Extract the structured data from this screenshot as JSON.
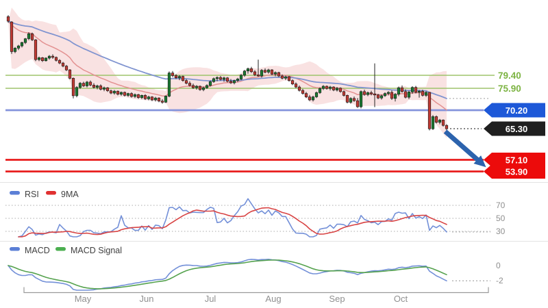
{
  "page": {
    "background": "#ffffff"
  },
  "price_chart": {
    "levels": [
      {
        "label": "79.40",
        "value": 79.4,
        "style": "green-line",
        "color": "#9dc36b",
        "label_color": "#7cb342"
      },
      {
        "label": "75.90",
        "value": 75.9,
        "style": "green-line",
        "color": "#9dc36b",
        "label_color": "#7cb342"
      },
      {
        "label": "70.20",
        "value": 70.2,
        "style": "blue-tag",
        "color": "#8494dc",
        "tag_color": "#1d58d8"
      },
      {
        "label": "65.30",
        "value": 65.3,
        "style": "black-tag",
        "color": "#333333",
        "tag_color": "#1f1f1f"
      },
      {
        "label": "57.10",
        "value": 57.1,
        "style": "red-tag",
        "color": "#e81c1c",
        "tag_color": "#ec0b0b"
      },
      {
        "label": "53.90",
        "value": 53.9,
        "style": "red-tag",
        "color": "#e81c1c",
        "tag_color": "#ec0b0b"
      }
    ],
    "annotation_arrow": {
      "from_price": 65.0,
      "to_price": 54.0,
      "direction": "down-right",
      "color": "#2c63ad"
    }
  },
  "rsi_panel": {
    "legend": [
      {
        "label": "RSI",
        "color": "#5b7fd6"
      },
      {
        "label": "9MA",
        "color": "#e03030"
      }
    ],
    "ticks": [
      "70",
      "50",
      "30"
    ]
  },
  "macd_panel": {
    "legend": [
      {
        "label": "MACD",
        "color": "#5b7fd6"
      },
      {
        "label": "MACD Signal",
        "color": "#4caf50"
      }
    ],
    "ticks": [
      "0",
      "-2"
    ]
  },
  "x_axis": {
    "months": [
      "May",
      "Jun",
      "Jul",
      "Aug",
      "Sep",
      "Oct"
    ]
  },
  "chart_data": {
    "type": "candlestick",
    "description": "Daily price candles mid-April through late-October with Bollinger-style band, fast/slow moving averages, horizontal support/resistance levels, RSI sub-panel and MACD sub-panel",
    "price_levels": [
      79.4,
      75.9,
      70.2,
      65.3,
      57.1,
      53.9
    ],
    "ylim_price": [
      52,
      97
    ],
    "rsi_ticks": [
      70,
      50,
      30
    ],
    "macd_ticks": [
      0,
      -2
    ],
    "indicators": {
      "band_window": 15,
      "band_mult": 2.1,
      "fast_ma_window": 15,
      "slow_ma_window": 45,
      "rsi_window": 14,
      "rsi_ma_window": 9,
      "macd_params": [
        12,
        26,
        9
      ]
    },
    "colors": {
      "up": "#1b7a32",
      "down": "#c13a34",
      "wick": "#222222",
      "band_fill": "rgba(236,164,164,0.32)",
      "fast_ma": "#e39191",
      "slow_ma": "#8094d0",
      "rsi": "#7390d8",
      "rsi_ma": "#d84343",
      "macd": "#7390d8",
      "macd_signal": "#55a24e",
      "leader_gray": "#b0b0b0",
      "leader_black": "#3a3a3a"
    },
    "ohlc": [
      [
        94.8,
        95.2,
        93.2,
        93.6
      ],
      [
        93.4,
        93.6,
        85.0,
        85.6
      ],
      [
        85.6,
        86.8,
        85.2,
        86.5
      ],
      [
        86.5,
        87.4,
        86.0,
        87.1
      ],
      [
        87.1,
        88.2,
        86.7,
        88.0
      ],
      [
        88.0,
        89.2,
        87.6,
        89.0
      ],
      [
        89.0,
        90.7,
        88.6,
        90.3
      ],
      [
        90.3,
        90.6,
        88.4,
        88.7
      ],
      [
        88.7,
        88.9,
        83.1,
        83.5
      ],
      [
        83.5,
        84.3,
        83.1,
        84.0
      ],
      [
        84.0,
        84.2,
        82.9,
        83.2
      ],
      [
        83.2,
        84.1,
        83.0,
        83.9
      ],
      [
        83.9,
        84.7,
        83.5,
        84.4
      ],
      [
        84.4,
        84.9,
        83.7,
        84.1
      ],
      [
        84.1,
        84.3,
        83.0,
        83.3
      ],
      [
        83.3,
        83.6,
        82.3,
        82.6
      ],
      [
        82.6,
        82.9,
        81.5,
        81.8
      ],
      [
        81.8,
        82.1,
        80.5,
        80.8
      ],
      [
        80.8,
        81.0,
        78.3,
        78.6
      ],
      [
        78.6,
        78.8,
        73.3,
        74.0
      ],
      [
        74.0,
        76.5,
        73.6,
        76.2
      ],
      [
        76.2,
        77.6,
        75.8,
        77.3
      ],
      [
        77.3,
        77.7,
        76.3,
        76.6
      ],
      [
        76.6,
        77.9,
        76.2,
        77.6
      ],
      [
        77.6,
        78.0,
        76.5,
        76.8
      ],
      [
        76.8,
        77.3,
        75.9,
        76.2
      ],
      [
        76.2,
        76.9,
        75.7,
        76.6
      ],
      [
        76.6,
        77.0,
        75.4,
        75.7
      ],
      [
        75.7,
        76.4,
        75.2,
        76.1
      ],
      [
        76.1,
        76.3,
        75.0,
        75.3
      ],
      [
        75.3,
        75.6,
        74.4,
        74.7
      ],
      [
        74.7,
        75.5,
        74.3,
        75.2
      ],
      [
        75.2,
        75.4,
        74.1,
        74.4
      ],
      [
        74.4,
        75.1,
        74.0,
        74.9
      ],
      [
        74.9,
        75.1,
        73.8,
        74.1
      ],
      [
        74.1,
        74.8,
        73.7,
        74.6
      ],
      [
        74.6,
        74.9,
        73.5,
        73.8
      ],
      [
        73.8,
        74.6,
        73.4,
        74.3
      ],
      [
        74.3,
        74.5,
        73.2,
        73.5
      ],
      [
        73.5,
        74.3,
        73.1,
        74.1
      ],
      [
        74.1,
        74.4,
        72.9,
        73.2
      ],
      [
        73.2,
        74.0,
        72.8,
        73.7
      ],
      [
        73.7,
        73.9,
        72.6,
        72.9
      ],
      [
        72.9,
        73.7,
        72.5,
        73.4
      ],
      [
        73.4,
        73.6,
        72.3,
        72.6
      ],
      [
        72.6,
        73.1,
        71.9,
        72.3
      ],
      [
        72.3,
        74.1,
        72.1,
        73.9
      ],
      [
        73.9,
        80.4,
        73.6,
        80.0
      ],
      [
        80.0,
        80.5,
        78.9,
        79.3
      ],
      [
        79.3,
        79.7,
        78.4,
        78.7
      ],
      [
        78.7,
        79.4,
        78.1,
        79.1
      ],
      [
        79.1,
        79.3,
        77.7,
        78.0
      ],
      [
        78.0,
        78.4,
        77.0,
        77.3
      ],
      [
        77.3,
        77.8,
        76.4,
        76.7
      ],
      [
        76.7,
        77.2,
        75.8,
        76.1
      ],
      [
        76.1,
        76.8,
        75.6,
        76.5
      ],
      [
        76.5,
        76.7,
        75.3,
        75.6
      ],
      [
        75.6,
        76.4,
        75.2,
        76.1
      ],
      [
        76.1,
        77.0,
        75.8,
        76.7
      ],
      [
        76.7,
        78.0,
        76.4,
        77.7
      ],
      [
        77.7,
        78.8,
        77.4,
        78.5
      ],
      [
        78.5,
        79.1,
        77.8,
        78.8
      ],
      [
        78.8,
        79.2,
        78.0,
        78.3
      ],
      [
        78.3,
        79.0,
        77.7,
        78.7
      ],
      [
        78.7,
        78.9,
        77.5,
        77.8
      ],
      [
        77.8,
        78.4,
        77.1,
        77.4
      ],
      [
        77.4,
        78.2,
        77.0,
        78.0
      ],
      [
        78.0,
        78.7,
        77.6,
        78.4
      ],
      [
        78.4,
        79.7,
        78.1,
        79.4
      ],
      [
        79.4,
        80.8,
        79.0,
        80.5
      ],
      [
        80.5,
        81.4,
        79.8,
        81.1
      ],
      [
        81.1,
        81.6,
        80.0,
        80.3
      ],
      [
        80.3,
        80.7,
        79.2,
        79.5
      ],
      [
        79.5,
        83.5,
        79.0,
        79.2
      ],
      [
        79.2,
        81.0,
        78.8,
        80.7
      ],
      [
        80.7,
        81.2,
        79.9,
        80.2
      ],
      [
        80.2,
        81.1,
        79.8,
        80.8
      ],
      [
        80.8,
        81.0,
        79.4,
        79.7
      ],
      [
        79.7,
        80.4,
        79.1,
        80.1
      ],
      [
        80.1,
        80.3,
        78.9,
        79.2
      ],
      [
        79.2,
        79.6,
        78.3,
        78.6
      ],
      [
        78.6,
        79.3,
        78.1,
        79.0
      ],
      [
        79.0,
        79.2,
        77.7,
        78.0
      ],
      [
        78.0,
        78.3,
        76.8,
        77.1
      ],
      [
        77.1,
        77.5,
        76.0,
        76.3
      ],
      [
        76.3,
        76.7,
        75.1,
        75.4
      ],
      [
        75.4,
        75.8,
        74.3,
        74.6
      ],
      [
        74.6,
        75.0,
        73.4,
        73.7
      ],
      [
        73.7,
        74.2,
        72.6,
        72.9
      ],
      [
        72.9,
        74.0,
        72.5,
        73.7
      ],
      [
        73.7,
        75.1,
        73.4,
        74.8
      ],
      [
        74.8,
        76.2,
        74.5,
        75.9
      ],
      [
        75.9,
        76.8,
        75.5,
        76.5
      ],
      [
        76.5,
        76.7,
        75.6,
        75.9
      ],
      [
        75.9,
        76.6,
        75.4,
        76.3
      ],
      [
        76.3,
        76.5,
        75.2,
        75.5
      ],
      [
        75.5,
        76.3,
        75.1,
        76.0
      ],
      [
        76.0,
        76.2,
        74.8,
        75.1
      ],
      [
        75.1,
        75.4,
        73.8,
        74.1
      ],
      [
        74.1,
        74.3,
        72.0,
        72.3
      ],
      [
        72.3,
        73.6,
        71.9,
        73.3
      ],
      [
        73.3,
        73.8,
        72.4,
        72.7
      ],
      [
        72.7,
        73.4,
        70.8,
        71.1
      ],
      [
        71.1,
        75.4,
        70.7,
        75.1
      ],
      [
        75.1,
        75.6,
        74.0,
        74.3
      ],
      [
        74.3,
        75.1,
        73.9,
        74.8
      ],
      [
        74.8,
        75.3,
        74.1,
        74.5
      ],
      [
        74.5,
        82.5,
        71.0,
        74.2
      ],
      [
        74.2,
        74.5,
        73.1,
        73.4
      ],
      [
        73.4,
        74.3,
        73.0,
        74.0
      ],
      [
        74.0,
        74.9,
        73.7,
        74.6
      ],
      [
        74.6,
        75.2,
        74.1,
        74.9
      ],
      [
        74.9,
        75.4,
        72.9,
        73.3
      ],
      [
        73.3,
        74.7,
        72.5,
        74.4
      ],
      [
        74.4,
        76.4,
        73.9,
        76.1
      ],
      [
        76.1,
        76.7,
        74.8,
        75.1
      ],
      [
        75.1,
        75.7,
        73.3,
        73.6
      ],
      [
        73.6,
        75.3,
        73.1,
        75.0
      ],
      [
        75.0,
        76.5,
        74.5,
        76.2
      ],
      [
        76.2,
        76.6,
        74.6,
        74.9
      ],
      [
        74.9,
        75.5,
        73.5,
        75.2
      ],
      [
        75.2,
        75.6,
        73.8,
        74.1
      ],
      [
        74.1,
        75.2,
        73.7,
        74.9
      ],
      [
        74.9,
        75.0,
        64.9,
        65.3
      ],
      [
        65.3,
        68.9,
        65.0,
        68.5
      ],
      [
        68.5,
        68.8,
        66.7,
        67.0
      ],
      [
        67.0,
        67.9,
        66.5,
        67.6
      ],
      [
        67.6,
        67.8,
        65.9,
        66.2
      ],
      [
        66.2,
        66.5,
        64.4,
        65.3
      ]
    ]
  }
}
